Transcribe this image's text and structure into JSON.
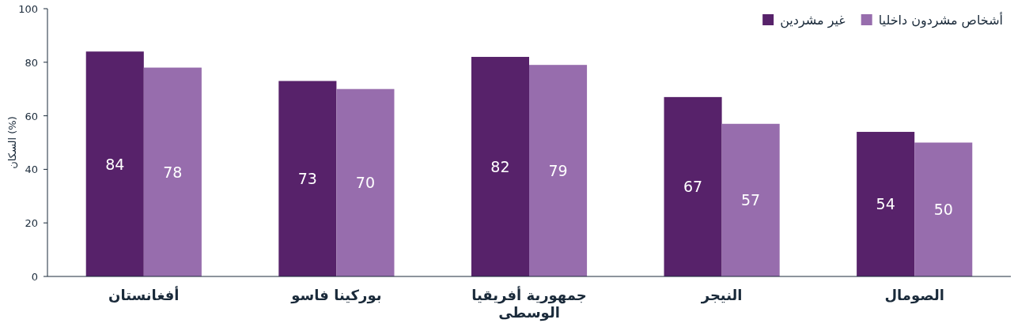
{
  "chart_data": {
    "type": "bar",
    "ylabel": "السكان (%)",
    "categories": [
      "أفغانستان",
      "بوركينا فاسو",
      "جمهورية أفريقيا الوسطى",
      "النيجر",
      "الصومال"
    ],
    "series": [
      {
        "name": "غير مشردين",
        "color": "#57226a",
        "values": [
          84,
          73,
          82,
          67,
          54
        ]
      },
      {
        "name": "أشخاص مشردون داخليا",
        "color": "#976dad",
        "values": [
          78,
          70,
          79,
          57,
          50
        ]
      }
    ],
    "ylim": [
      0,
      100
    ],
    "yticks": [
      0,
      20,
      40,
      60,
      80,
      100
    ],
    "data_labels": true,
    "legend": "top right",
    "grid": false
  }
}
